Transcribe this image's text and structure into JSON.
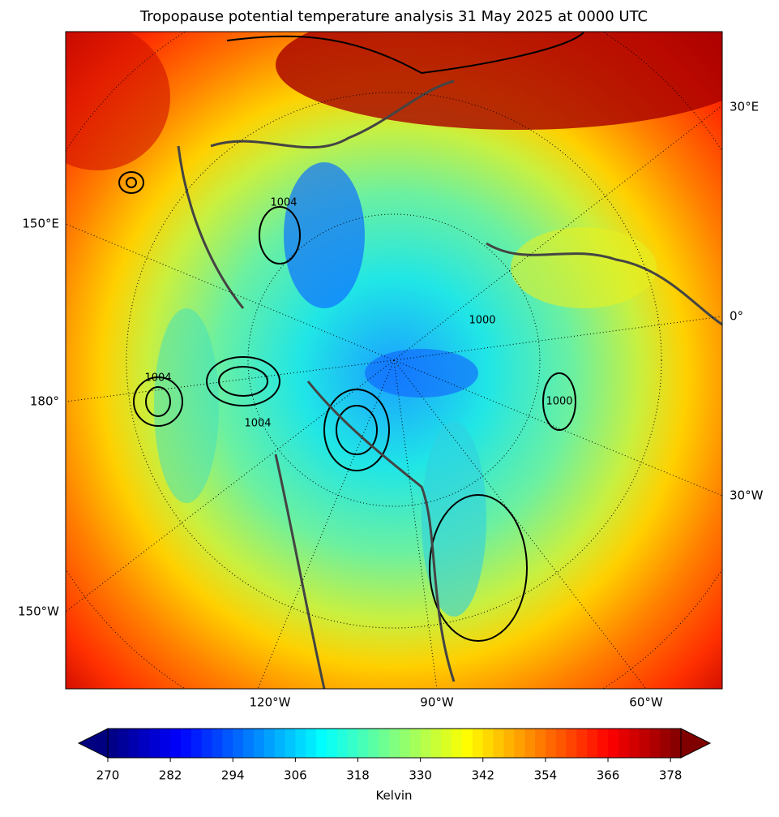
{
  "title": "Tropopause potential temperature analysis 31 May 2025 at 0000 UTC",
  "map": {
    "right_labels": [
      "30°E",
      "0°",
      "30°W"
    ],
    "left_labels": [
      "150°E",
      "180°",
      "150°W"
    ],
    "bottom_labels": [
      "120°W",
      "90°W",
      "60°W"
    ],
    "contour_labels": [
      "1004",
      "1004",
      "1004",
      "1000",
      "1000"
    ]
  },
  "colorbar": {
    "label": "Kelvin",
    "range": [
      270,
      380
    ],
    "ticks": [
      270,
      282,
      294,
      306,
      318,
      330,
      342,
      354,
      366,
      378
    ]
  }
}
